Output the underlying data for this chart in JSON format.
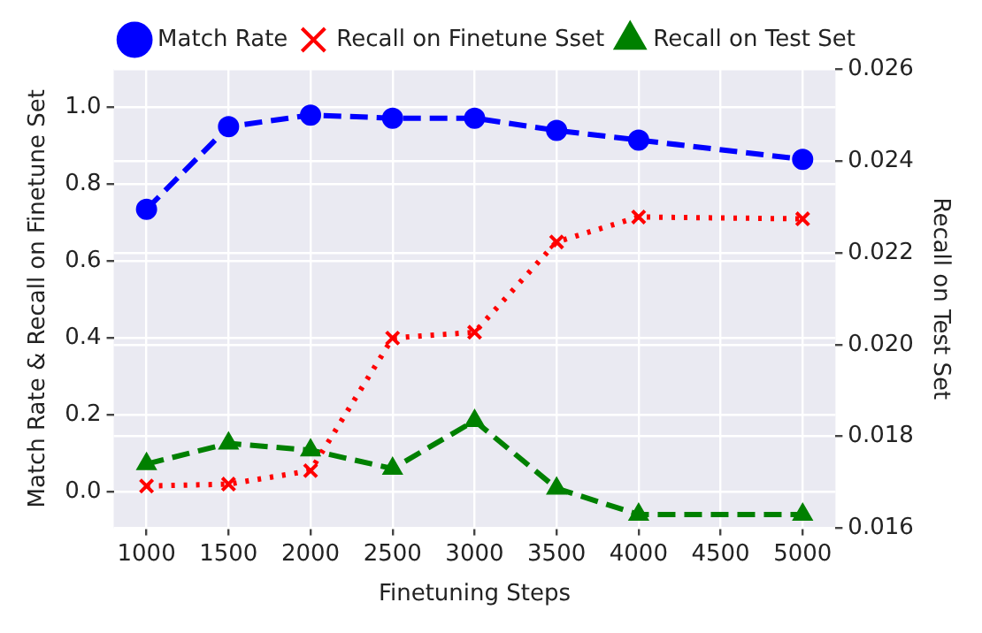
{
  "chart_data": {
    "type": "line",
    "xlabel": "Finetuning Steps",
    "ylabel": "Match Rate & Recall on Finetune Set",
    "y2label": "Recall on Test Set",
    "x": [
      1000,
      1500,
      2000,
      2500,
      3000,
      3500,
      4000,
      5000
    ],
    "xlim": [
      800,
      5200
    ],
    "xticks": [
      1000,
      1500,
      2000,
      2500,
      3000,
      3500,
      4000,
      4500,
      5000
    ],
    "ylim": [
      -0.095,
      1.1
    ],
    "yticks": [
      {
        "value": 0,
        "label": "0.0"
      },
      0.2,
      0.4,
      0.6,
      0.8,
      {
        "value": 1,
        "label": "1.0"
      }
    ],
    "y2lim": [
      0.016,
      0.026
    ],
    "y2ticks": [
      {
        "value": 0.016,
        "label": "0.016"
      },
      0.018,
      {
        "value": 0.02,
        "label": "0.020"
      },
      0.022,
      0.024,
      0.026
    ],
    "grid": true,
    "legend": "top",
    "series": [
      {
        "name": "Match Rate",
        "color": "#0000ff",
        "marker": "circle",
        "line_style": "dashed",
        "values": [
          0.735,
          0.95,
          0.98,
          0.972,
          0.972,
          0.94,
          0.915,
          0.865
        ]
      },
      {
        "name": "Recall on Finetune Sset",
        "color": "#ff0000",
        "marker": "cross",
        "line_style": "dotted",
        "values": [
          0.015,
          0.02,
          0.055,
          0.4,
          0.415,
          0.65,
          0.715,
          0.71
        ]
      },
      {
        "name": "Recall on Test Set",
        "color": "#008000",
        "marker": "triangle",
        "line_style": "dashed",
        "axis": "y2",
        "values": [
          0.0174,
          0.01785,
          0.0177,
          0.0173,
          0.01834,
          0.01687,
          0.0163,
          0.0163
        ]
      }
    ]
  }
}
